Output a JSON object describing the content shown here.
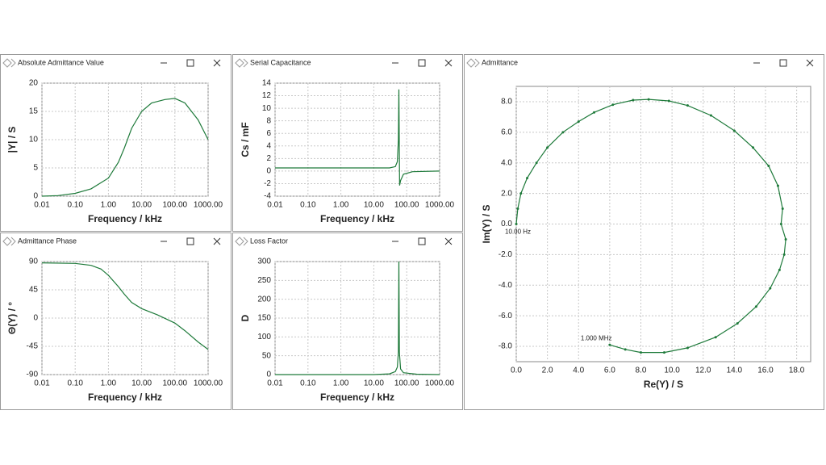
{
  "chart_data": [
    {
      "type": "line",
      "title": "Absolute Admittance Value",
      "xlabel": "Frequency / kHz",
      "ylabel": "|Y| / S",
      "xscale": "log",
      "color": "#1e7a3a",
      "grid": true,
      "xlim": [
        0.01,
        1000
      ],
      "xticks": [
        0.01,
        {
          "value": 0.1,
          "label": "0.10"
        },
        {
          "value": 1,
          "label": "1.00"
        },
        {
          "value": 10,
          "label": "10.00"
        },
        {
          "value": 100,
          "label": "100.00"
        },
        {
          "value": 1000,
          "label": "1000.00"
        }
      ],
      "ylim": [
        0,
        20
      ],
      "yticks": [
        0,
        5,
        10,
        15,
        20
      ],
      "x": [
        0.01,
        0.03,
        0.1,
        0.3,
        1,
        2,
        3,
        5,
        10,
        20,
        50,
        100,
        200,
        500,
        1000
      ],
      "values": [
        0,
        0.1,
        0.5,
        1.3,
        3.2,
        6,
        8.5,
        12,
        15,
        16.5,
        17.1,
        17.3,
        16.5,
        13.5,
        10
      ]
    },
    {
      "type": "line",
      "title": "Serial Capacitance",
      "xlabel": "Frequency / kHz",
      "ylabel": "Cs / mF",
      "xscale": "log",
      "color": "#1e7a3a",
      "grid": true,
      "xlim": [
        0.01,
        1000
      ],
      "xticks": [
        0.01,
        {
          "value": 0.1,
          "label": "0.10"
        },
        {
          "value": 1,
          "label": "1.00"
        },
        {
          "value": 10,
          "label": "10.00"
        },
        {
          "value": 100,
          "label": "100.00"
        },
        {
          "value": 1000,
          "label": "1000.00"
        }
      ],
      "ylim": [
        -4,
        14
      ],
      "yticks": [
        -4,
        -2,
        0,
        2,
        4,
        6,
        8,
        10,
        12,
        14
      ],
      "x": [
        0.01,
        1,
        10,
        30,
        45,
        52,
        56,
        58,
        59.5,
        61,
        65,
        80,
        150,
        1000
      ],
      "values": [
        0.5,
        0.5,
        0.5,
        0.5,
        0.7,
        1.5,
        5,
        13,
        4,
        -2.3,
        -1.5,
        -0.5,
        -0.1,
        0
      ]
    },
    {
      "type": "line",
      "title": "Admittance Phase",
      "xlabel": "Frequency / kHz",
      "ylabel": "Θ(Y) / °",
      "xscale": "log",
      "color": "#1e7a3a",
      "grid": true,
      "xlim": [
        0.01,
        1000
      ],
      "xticks": [
        0.01,
        {
          "value": 0.1,
          "label": "0.10"
        },
        {
          "value": 1,
          "label": "1.00"
        },
        {
          "value": 10,
          "label": "10.00"
        },
        {
          "value": 100,
          "label": "100.00"
        },
        {
          "value": 1000,
          "label": "1000.00"
        }
      ],
      "ylim": [
        -90,
        90
      ],
      "yticks": [
        -90,
        -45,
        0,
        45,
        90
      ],
      "x": [
        0.01,
        0.1,
        0.3,
        0.6,
        1,
        2,
        3,
        5,
        10,
        30,
        100,
        200,
        500,
        1000
      ],
      "values": [
        88,
        87,
        84,
        78,
        68,
        50,
        38,
        25,
        15,
        5,
        -8,
        -20,
        -38,
        -50
      ]
    },
    {
      "type": "line",
      "title": "Loss Factor",
      "xlabel": "Frequency / kHz",
      "ylabel": "D",
      "xscale": "log",
      "color": "#1e7a3a",
      "grid": true,
      "xlim": [
        0.01,
        1000
      ],
      "xticks": [
        0.01,
        {
          "value": 0.1,
          "label": "0.10"
        },
        {
          "value": 1,
          "label": "1.00"
        },
        {
          "value": 10,
          "label": "10.00"
        },
        {
          "value": 100,
          "label": "100.00"
        },
        {
          "value": 1000,
          "label": "1000.00"
        }
      ],
      "ylim": [
        0,
        300
      ],
      "yticks": [
        0,
        50,
        100,
        150,
        200,
        250,
        300
      ],
      "x": [
        0.01,
        10,
        30,
        45,
        52,
        56,
        58,
        60,
        65,
        80,
        200,
        1000
      ],
      "values": [
        0,
        0,
        2,
        8,
        20,
        60,
        300,
        60,
        15,
        5,
        1,
        0
      ]
    },
    {
      "type": "line",
      "title": "Admittance",
      "xlabel": "Re(Y) / S",
      "ylabel": "Im(Y) / S",
      "xscale": "linear",
      "color": "#1e7a3a",
      "grid": true,
      "markers": true,
      "annotations": [
        "10.00 Hz",
        "1.000 MHz"
      ],
      "xlim": [
        0,
        18.9
      ],
      "xticks": [
        {
          "value": 0,
          "label": "0.0"
        },
        {
          "value": 2,
          "label": "2.0"
        },
        {
          "value": 4,
          "label": "4.0"
        },
        {
          "value": 6,
          "label": "6.0"
        },
        {
          "value": 8,
          "label": "8.0"
        },
        {
          "value": 10,
          "label": "10.0"
        },
        {
          "value": 12,
          "label": "12.0"
        },
        {
          "value": 14,
          "label": "14.0"
        },
        {
          "value": 16,
          "label": "16.0"
        },
        {
          "value": 18,
          "label": "18.0"
        }
      ],
      "ylim": [
        -9,
        9
      ],
      "yticks": [
        {
          "value": -8,
          "label": "-8.0"
        },
        {
          "value": -6,
          "label": "-6.0"
        },
        {
          "value": -4,
          "label": "-4.0"
        },
        {
          "value": -2,
          "label": "-2.0"
        },
        {
          "value": 0,
          "label": "0.0"
        },
        {
          "value": 2,
          "label": "2.0"
        },
        {
          "value": 4,
          "label": "4.0"
        },
        {
          "value": 6,
          "label": "6.0"
        },
        {
          "value": 8,
          "label": "8.0"
        }
      ],
      "x": [
        0,
        0.1,
        0.3,
        0.7,
        1.3,
        2,
        3,
        4,
        5,
        6.2,
        7.5,
        8.5,
        9.8,
        11,
        12.5,
        14,
        15.2,
        16.2,
        16.8,
        17.1,
        17,
        17.3,
        17.2,
        16.9,
        16.3,
        15.4,
        14.2,
        12.8,
        11,
        9.5,
        8,
        7,
        6
      ],
      "values": [
        0,
        1,
        2,
        3,
        4,
        5,
        6,
        6.7,
        7.3,
        7.8,
        8.1,
        8.15,
        8.05,
        7.75,
        7.1,
        6.1,
        5,
        3.8,
        2.5,
        1,
        0,
        -1,
        -2,
        -3,
        -4.2,
        -5.4,
        -6.5,
        -7.4,
        -8.1,
        -8.4,
        -8.4,
        -8.2,
        -7.9
      ]
    }
  ]
}
